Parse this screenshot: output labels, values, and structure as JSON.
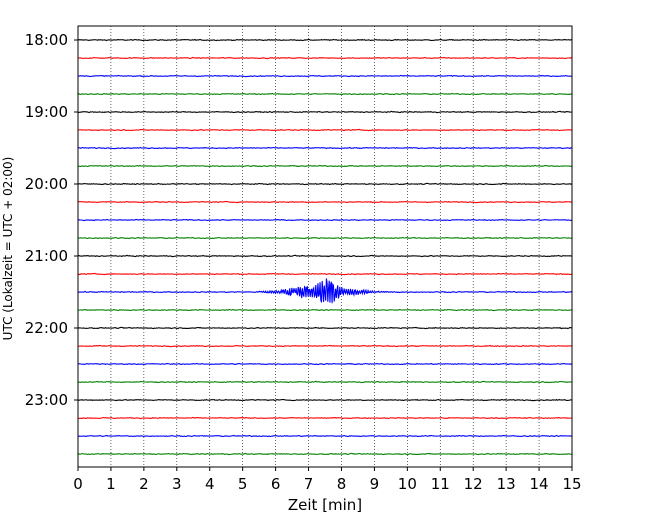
{
  "chart_data": {
    "type": "line",
    "title": "",
    "xlabel": "Zeit  [min]",
    "ylabel": "UTC (Lokalzeit = UTC + 02:00)",
    "xlim": [
      0,
      15
    ],
    "x_ticks": [
      0,
      1,
      2,
      3,
      4,
      5,
      6,
      7,
      8,
      9,
      10,
      11,
      12,
      13,
      14,
      15
    ],
    "y_tick_labels": [
      "18:00",
      "19:00",
      "20:00",
      "21:00",
      "22:00",
      "23:00"
    ],
    "grid": "vertical dotted at each minute",
    "legend": "none",
    "row_interval_min": 15,
    "trace_colors": [
      "#000000",
      "#ff0000",
      "#0000ff",
      "#008000"
    ],
    "rows": [
      {
        "start": "18:00",
        "color": "#000000"
      },
      {
        "start": "18:15",
        "color": "#ff0000"
      },
      {
        "start": "18:30",
        "color": "#0000ff"
      },
      {
        "start": "18:45",
        "color": "#008000"
      },
      {
        "start": "19:00",
        "color": "#000000"
      },
      {
        "start": "19:15",
        "color": "#ff0000"
      },
      {
        "start": "19:30",
        "color": "#0000ff"
      },
      {
        "start": "19:45",
        "color": "#008000"
      },
      {
        "start": "20:00",
        "color": "#000000"
      },
      {
        "start": "20:15",
        "color": "#ff0000"
      },
      {
        "start": "20:30",
        "color": "#0000ff"
      },
      {
        "start": "20:45",
        "color": "#008000"
      },
      {
        "start": "21:00",
        "color": "#000000"
      },
      {
        "start": "21:15",
        "color": "#ff0000"
      },
      {
        "start": "21:30",
        "color": "#0000ff"
      },
      {
        "start": "21:45",
        "color": "#008000"
      },
      {
        "start": "22:00",
        "color": "#000000"
      },
      {
        "start": "22:15",
        "color": "#ff0000"
      },
      {
        "start": "22:30",
        "color": "#0000ff"
      },
      {
        "start": "22:45",
        "color": "#008000"
      },
      {
        "start": "23:00",
        "color": "#000000"
      },
      {
        "start": "23:15",
        "color": "#ff0000"
      },
      {
        "start": "23:30",
        "color": "#0000ff"
      },
      {
        "start": "23:45",
        "color": "#008000"
      }
    ],
    "event": {
      "row_start": "21:30",
      "x_start_min": 5.0,
      "x_peak_min": 7.6,
      "x_end_min": 10.0,
      "peak_amplitude_relative": 16,
      "color": "#0000ff"
    }
  }
}
